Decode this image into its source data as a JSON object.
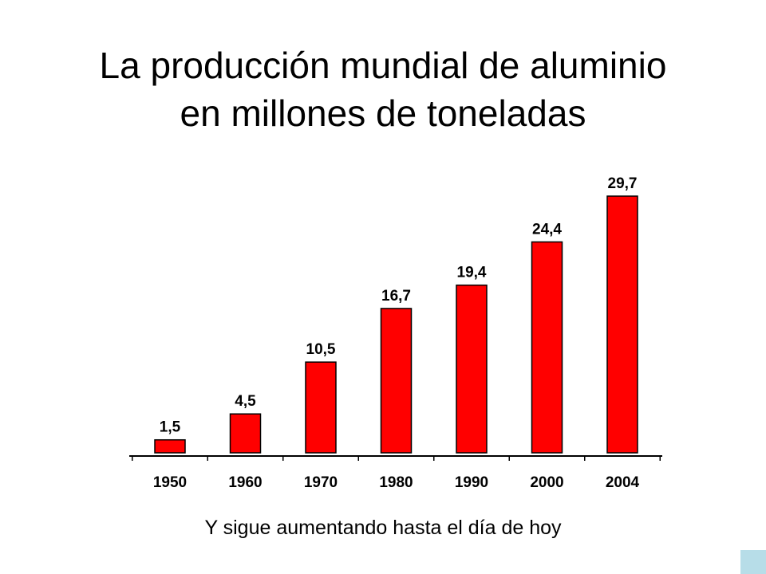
{
  "chart_data": {
    "type": "bar",
    "title_line1": "La producción mundial de aluminio",
    "title_line2": "en millones de toneladas",
    "categories": [
      "1950",
      "1960",
      "1970",
      "1980",
      "1990",
      "2000",
      "2004"
    ],
    "values": [
      1.5,
      4.5,
      10.5,
      16.7,
      19.4,
      24.4,
      29.7
    ],
    "value_labels": [
      "1,5",
      "4,5",
      "10,5",
      "16,7",
      "19,4",
      "24,4",
      "29,7"
    ],
    "xlabel": "",
    "ylabel": "",
    "ylim": [
      0,
      29.7
    ],
    "grid": false,
    "bar_color": "#ff0000"
  },
  "footer_text": "Y sigue aumentando hasta el día de hoy",
  "accent_color": "#b7dde8"
}
